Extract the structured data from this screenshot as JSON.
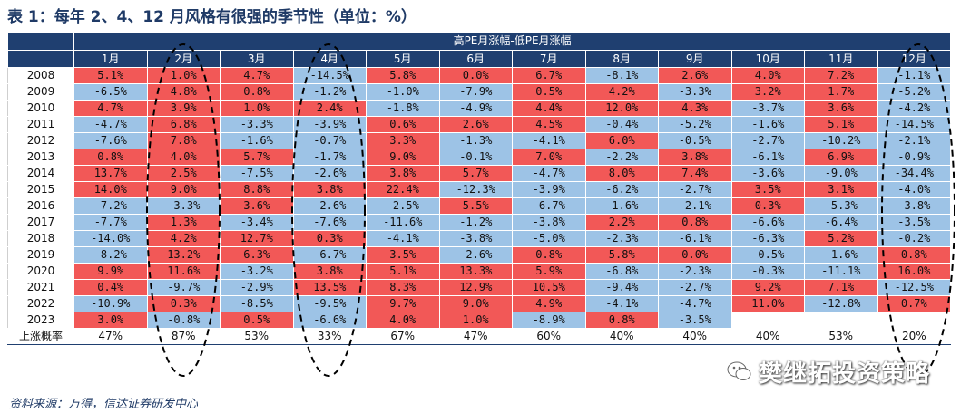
{
  "title": "表 1：每年 2、4、12 月风格有很强的季节性（单位：%）",
  "table": {
    "header": "高PE月涨幅-低PE月涨幅",
    "months": [
      "1月",
      "2月",
      "3月",
      "4月",
      "5月",
      "6月",
      "7月",
      "8月",
      "9月",
      "10月",
      "11月",
      "12月"
    ],
    "rows": [
      {
        "year": "2008",
        "values": [
          "5.1%",
          "1.0%",
          "4.7%",
          "-14.5%",
          "5.8%",
          "0.0%",
          "6.7%",
          "-8.1%",
          "2.6%",
          "4.0%",
          "7.2%",
          "-1.1%"
        ]
      },
      {
        "year": "2009",
        "values": [
          "-6.5%",
          "4.8%",
          "0.8%",
          "-1.2%",
          "-1.0%",
          "-7.9%",
          "0.5%",
          "4.2%",
          "-3.3%",
          "3.2%",
          "1.7%",
          "-5.2%"
        ]
      },
      {
        "year": "2010",
        "values": [
          "4.7%",
          "3.9%",
          "1.0%",
          "2.4%",
          "-1.8%",
          "-4.9%",
          "4.4%",
          "12.0%",
          "4.3%",
          "-3.7%",
          "3.6%",
          "-4.2%"
        ]
      },
      {
        "year": "2011",
        "values": [
          "-4.7%",
          "6.8%",
          "-3.3%",
          "-3.9%",
          "0.6%",
          "2.6%",
          "4.5%",
          "-0.4%",
          "-5.2%",
          "-1.6%",
          "5.1%",
          "-14.5%"
        ]
      },
      {
        "year": "2012",
        "values": [
          "-7.6%",
          "7.8%",
          "-1.6%",
          "-0.7%",
          "3.3%",
          "-1.3%",
          "-4.1%",
          "6.0%",
          "-0.5%",
          "-2.7%",
          "-10.2%",
          "-2.1%"
        ]
      },
      {
        "year": "2013",
        "values": [
          "0.8%",
          "4.0%",
          "5.7%",
          "-1.7%",
          "9.0%",
          "-0.1%",
          "7.0%",
          "-2.2%",
          "3.8%",
          "-6.1%",
          "6.9%",
          "-0.9%"
        ]
      },
      {
        "year": "2014",
        "values": [
          "13.7%",
          "2.5%",
          "-7.5%",
          "-2.6%",
          "3.8%",
          "5.7%",
          "-4.7%",
          "8.0%",
          "7.4%",
          "-3.6%",
          "-9.0%",
          "-34.4%"
        ]
      },
      {
        "year": "2015",
        "values": [
          "14.0%",
          "9.0%",
          "8.8%",
          "3.8%",
          "22.4%",
          "-12.3%",
          "-3.9%",
          "-6.2%",
          "-2.7%",
          "3.5%",
          "3.1%",
          "-4.0%"
        ]
      },
      {
        "year": "2016",
        "values": [
          "-7.2%",
          "-3.3%",
          "3.6%",
          "-2.6%",
          "-2.5%",
          "5.5%",
          "-6.7%",
          "-1.6%",
          "-2.1%",
          "0.3%",
          "-5.3%",
          "-3.8%"
        ]
      },
      {
        "year": "2017",
        "values": [
          "-7.7%",
          "1.3%",
          "-3.4%",
          "-7.6%",
          "-11.6%",
          "-1.2%",
          "-3.8%",
          "2.2%",
          "0.8%",
          "-6.6%",
          "-6.4%",
          "-3.5%"
        ]
      },
      {
        "year": "2018",
        "values": [
          "-14.0%",
          "4.2%",
          "12.7%",
          "0.3%",
          "-4.1%",
          "-3.8%",
          "-5.0%",
          "-2.3%",
          "-6.1%",
          "-6.3%",
          "5.2%",
          "-0.2%"
        ]
      },
      {
        "year": "2019",
        "values": [
          "-8.2%",
          "13.2%",
          "6.3%",
          "-6.7%",
          "3.5%",
          "-2.6%",
          "0.8%",
          "5.8%",
          "0.0%",
          "-0.5%",
          "-1.6%",
          "0.8%"
        ]
      },
      {
        "year": "2020",
        "values": [
          "9.9%",
          "11.6%",
          "-3.2%",
          "3.8%",
          "5.1%",
          "13.3%",
          "5.9%",
          "-6.8%",
          "-2.3%",
          "-0.3%",
          "-11.1%",
          "16.0%"
        ]
      },
      {
        "year": "2021",
        "values": [
          "0.4%",
          "-9.7%",
          "-2.9%",
          "13.5%",
          "8.3%",
          "12.9%",
          "10.5%",
          "-9.4%",
          "-2.7%",
          "9.2%",
          "7.1%",
          "-12.5%"
        ]
      },
      {
        "year": "2022",
        "values": [
          "-10.9%",
          "0.3%",
          "-8.5%",
          "-9.5%",
          "9.7%",
          "9.0%",
          "4.9%",
          "-4.1%",
          "-4.7%",
          "11.0%",
          "-12.8%",
          "0.7%"
        ]
      },
      {
        "year": "2023",
        "values": [
          "3.0%",
          "-0.8%",
          "0.5%",
          "-6.6%",
          "4.0%",
          "1.0%",
          "-8.9%",
          "0.8%",
          "-3.5%",
          "",
          "",
          ""
        ]
      }
    ],
    "prob_label": "上涨概率",
    "prob_values": [
      "47%",
      "87%",
      "53%",
      "33%",
      "67%",
      "47%",
      "60%",
      "40%",
      "40%",
      "40%",
      "53%",
      "20%"
    ]
  },
  "source": "资料来源：万得，信达证券研发中心",
  "watermark": "樊继拓投资策略",
  "colors": {
    "positive": "#f25857",
    "negative": "#9dc3e6",
    "header": "#1f3f70",
    "title": "#1f3a66"
  }
}
